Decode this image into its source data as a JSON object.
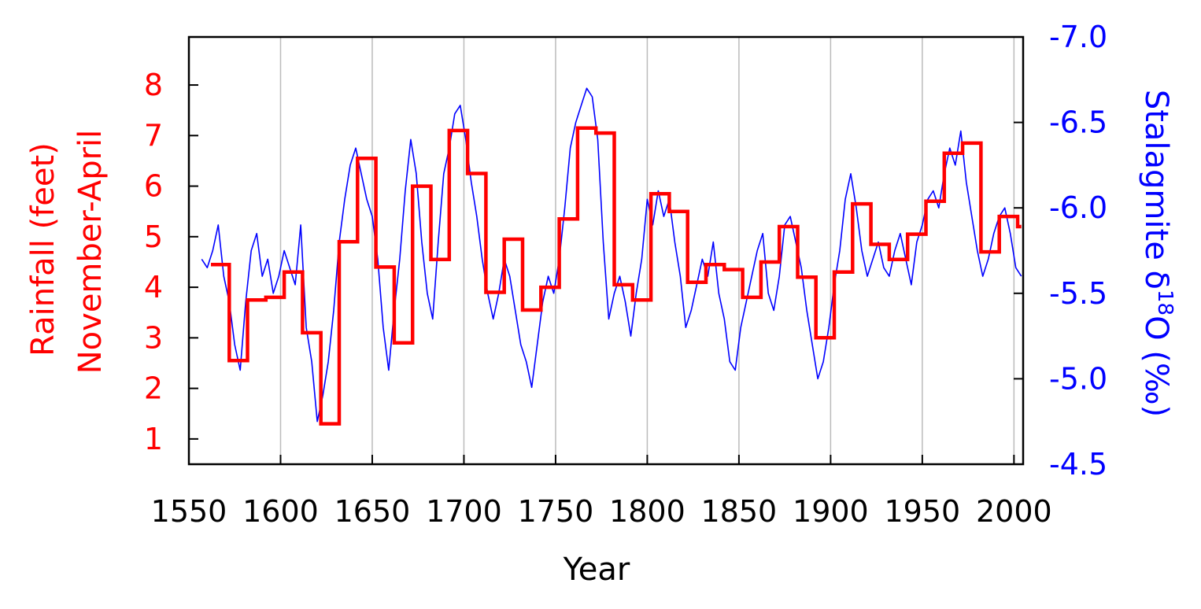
{
  "chart_data": {
    "type": "line",
    "xlabel": "Year",
    "ylabel_left_line1": "Rainfall (feet)",
    "ylabel_left_line2": "November-April",
    "ylabel_right_main": "Stalagmite δ",
    "ylabel_right_sup": "18",
    "ylabel_right_tail": "O (‰)",
    "xlim": [
      1550,
      2005
    ],
    "ylim_left": [
      0.5,
      8.95
    ],
    "ylim_right": [
      -4.5,
      -7.0
    ],
    "right_axis_inverted": true,
    "x_ticks": [
      1550,
      1600,
      1650,
      1700,
      1750,
      1800,
      1850,
      1900,
      1950,
      2000
    ],
    "y_ticks_left": [
      1,
      2,
      3,
      4,
      5,
      6,
      7,
      8
    ],
    "y_ticks_right": [
      "-7.0",
      "-6.5",
      "-6.0",
      "-5.5",
      "-5.0",
      "-4.5"
    ],
    "grid": "vertical lines at x ticks",
    "colors": {
      "rainfall": "#ff0000",
      "d18o": "#0000ff",
      "grid": "#bbbbbb",
      "axis": "#000000",
      "x_text": "#000000"
    },
    "series": [
      {
        "axis": "left",
        "style": "step",
        "color": "#ff0000",
        "x_edges": [
          1562,
          1572,
          1582,
          1592,
          1602,
          1612,
          1622,
          1632,
          1642,
          1652,
          1662,
          1672,
          1682,
          1692,
          1702,
          1712,
          1722,
          1732,
          1742,
          1752,
          1762,
          1772,
          1782,
          1792,
          1802,
          1812,
          1822,
          1832,
          1842,
          1852,
          1862,
          1872,
          1882,
          1892,
          1902,
          1912,
          1922,
          1932,
          1942,
          1952,
          1962,
          1972,
          1982,
          1992,
          2002
        ],
        "values": [
          4.45,
          2.55,
          3.75,
          3.8,
          4.3,
          3.1,
          1.3,
          4.9,
          6.55,
          4.4,
          2.9,
          6.0,
          4.55,
          7.1,
          6.25,
          3.9,
          4.95,
          3.55,
          4.0,
          5.35,
          7.15,
          7.05,
          4.05,
          3.75,
          5.85,
          5.5,
          4.1,
          4.45,
          4.35,
          3.8,
          4.5,
          5.2,
          4.2,
          3.0,
          4.3,
          5.65,
          4.85,
          4.55,
          5.05,
          5.7,
          6.65,
          6.85,
          4.7,
          5.4,
          5.2
        ]
      },
      {
        "axis": "right",
        "style": "line",
        "color": "#0000ff",
        "x": [
          1557,
          1560,
          1563,
          1566,
          1569,
          1572,
          1575,
          1578,
          1581,
          1584,
          1587,
          1590,
          1593,
          1596,
          1599,
          1602,
          1605,
          1608,
          1611,
          1614,
          1617,
          1620,
          1623,
          1626,
          1629,
          1632,
          1635,
          1638,
          1641,
          1644,
          1647,
          1650,
          1653,
          1656,
          1659,
          1662,
          1665,
          1668,
          1671,
          1674,
          1677,
          1680,
          1683,
          1686,
          1689,
          1692,
          1695,
          1698,
          1701,
          1704,
          1707,
          1710,
          1713,
          1716,
          1719,
          1722,
          1725,
          1728,
          1731,
          1734,
          1737,
          1740,
          1743,
          1746,
          1749,
          1752,
          1755,
          1758,
          1761,
          1764,
          1767,
          1770,
          1773,
          1776,
          1779,
          1782,
          1785,
          1788,
          1791,
          1794,
          1797,
          1800,
          1803,
          1806,
          1809,
          1812,
          1815,
          1818,
          1821,
          1824,
          1827,
          1830,
          1833,
          1836,
          1839,
          1842,
          1845,
          1848,
          1851,
          1854,
          1857,
          1860,
          1863,
          1866,
          1869,
          1872,
          1875,
          1878,
          1881,
          1884,
          1887,
          1890,
          1893,
          1896,
          1899,
          1902,
          1905,
          1908,
          1911,
          1914,
          1917,
          1920,
          1923,
          1926,
          1929,
          1932,
          1935,
          1938,
          1941,
          1944,
          1947,
          1950,
          1953,
          1956,
          1959,
          1962,
          1965,
          1968,
          1971,
          1974,
          1977,
          1980,
          1983,
          1986,
          1989,
          1992,
          1995,
          1998,
          2001,
          2004
        ],
        "values": [
          -5.7,
          -5.65,
          -5.75,
          -5.9,
          -5.6,
          -5.45,
          -5.2,
          -5.05,
          -5.45,
          -5.75,
          -5.85,
          -5.6,
          -5.7,
          -5.5,
          -5.6,
          -5.75,
          -5.65,
          -5.55,
          -5.9,
          -5.3,
          -5.1,
          -4.75,
          -4.9,
          -5.1,
          -5.4,
          -5.8,
          -6.05,
          -6.25,
          -6.35,
          -6.2,
          -6.05,
          -5.95,
          -5.7,
          -5.3,
          -5.05,
          -5.4,
          -5.7,
          -6.1,
          -6.4,
          -6.2,
          -5.8,
          -5.5,
          -5.35,
          -5.8,
          -6.2,
          -6.35,
          -6.55,
          -6.6,
          -6.4,
          -6.15,
          -5.95,
          -5.7,
          -5.5,
          -5.35,
          -5.5,
          -5.7,
          -5.6,
          -5.4,
          -5.2,
          -5.1,
          -4.95,
          -5.2,
          -5.45,
          -5.6,
          -5.5,
          -5.7,
          -6.0,
          -6.35,
          -6.5,
          -6.6,
          -6.7,
          -6.65,
          -6.4,
          -5.8,
          -5.35,
          -5.5,
          -5.6,
          -5.45,
          -5.25,
          -5.5,
          -5.7,
          -6.05,
          -5.9,
          -6.1,
          -5.95,
          -6.05,
          -5.8,
          -5.6,
          -5.3,
          -5.4,
          -5.55,
          -5.7,
          -5.6,
          -5.8,
          -5.5,
          -5.35,
          -5.1,
          -5.05,
          -5.3,
          -5.45,
          -5.6,
          -5.75,
          -5.85,
          -5.5,
          -5.4,
          -5.6,
          -5.9,
          -5.95,
          -5.8,
          -5.65,
          -5.4,
          -5.2,
          -5.0,
          -5.1,
          -5.3,
          -5.55,
          -5.75,
          -6.05,
          -6.2,
          -6.0,
          -5.75,
          -5.6,
          -5.7,
          -5.8,
          -5.65,
          -5.6,
          -5.75,
          -5.85,
          -5.7,
          -5.55,
          -5.8,
          -5.9,
          -6.05,
          -6.1,
          -6.0,
          -6.2,
          -6.35,
          -6.25,
          -6.45,
          -6.15,
          -5.95,
          -5.75,
          -5.6,
          -5.7,
          -5.85,
          -5.95,
          -6.0,
          -5.85,
          -5.65,
          -5.6
        ]
      }
    ]
  }
}
